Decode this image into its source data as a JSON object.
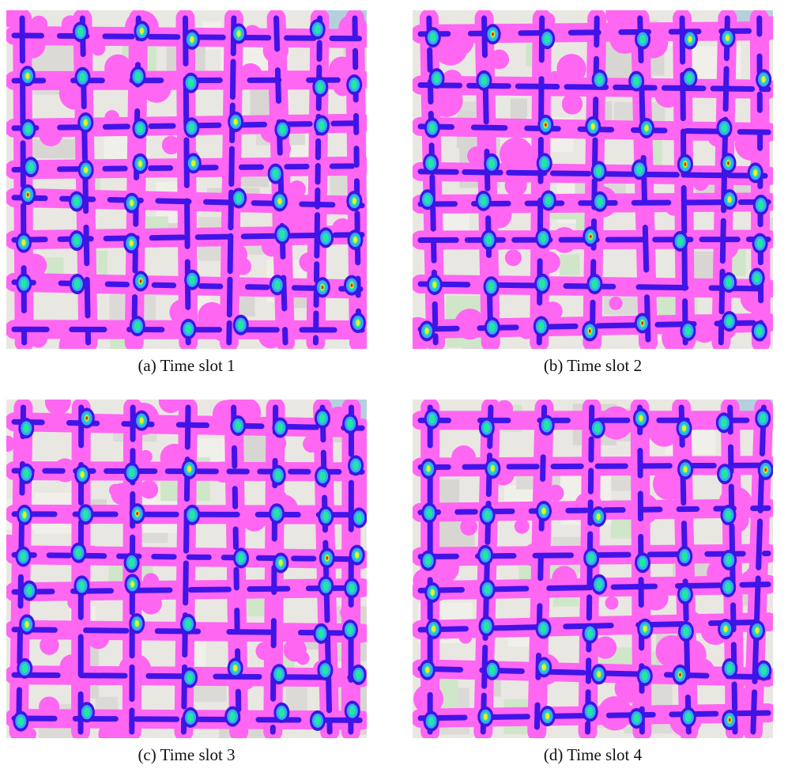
{
  "figure": {
    "panels": [
      {
        "caption": "(a) Time slot 1"
      },
      {
        "caption": "(b) Time slot 2"
      },
      {
        "caption": "(c) Time slot 3"
      },
      {
        "caption": "(d) Time slot 4"
      }
    ]
  }
}
